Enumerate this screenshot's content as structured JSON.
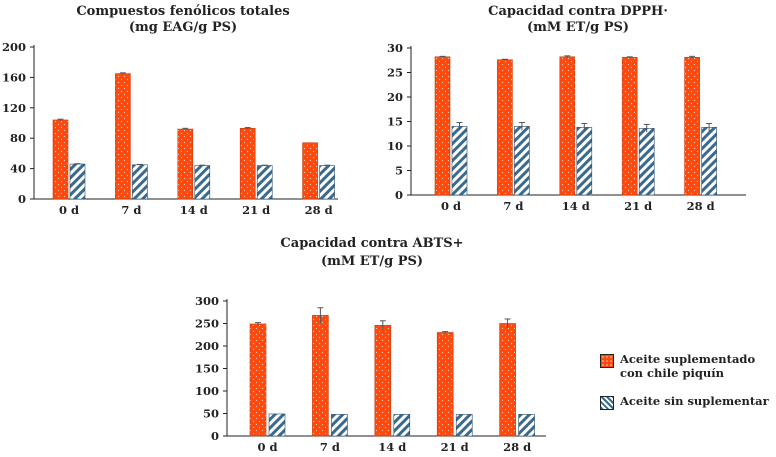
{
  "colors": {
    "supplemented": "#ff4a0f",
    "plain": "#3a6a8e",
    "axis": "#222222"
  },
  "legend": {
    "items": [
      {
        "label_lines": [
          "Aceite suplementado",
          "con chile piquín"
        ],
        "pattern": "dotted-orange"
      },
      {
        "label_lines": [
          "Aceite sin suplementar"
        ],
        "pattern": "diagonal-hatch-blue"
      }
    ]
  },
  "chart_data": [
    {
      "type": "bar",
      "title_lines": [
        "Compuestos fenólicos totales",
        "(mg EAG/g PS)"
      ],
      "categories": [
        "0 d",
        "7 d",
        "14 d",
        "21 d",
        "28 d"
      ],
      "ylim": [
        0,
        200
      ],
      "yticks": [
        0,
        40,
        80,
        120,
        160,
        200
      ],
      "series": [
        {
          "name": "Aceite suplementado con chile piquín",
          "values": [
            104,
            165,
            92,
            93,
            74
          ],
          "errors": [
            1,
            1,
            1,
            1,
            0
          ]
        },
        {
          "name": "Aceite sin suplementar",
          "values": [
            46,
            45,
            44,
            44,
            44
          ],
          "errors": [
            0.5,
            0.5,
            0.5,
            0.5,
            0.5
          ]
        }
      ],
      "grid": false,
      "legend": "bottom-right"
    },
    {
      "type": "bar",
      "title_lines": [
        "Capacidad contra DPPH·",
        "(mM ET/g PS)"
      ],
      "categories": [
        "0 d",
        "7 d",
        "14 d",
        "21 d",
        "28 d"
      ],
      "ylim": [
        0,
        30
      ],
      "yticks": [
        0,
        5,
        10,
        15,
        20,
        25,
        30
      ],
      "series": [
        {
          "name": "Aceite suplementado con chile piquín",
          "values": [
            28.2,
            27.6,
            28.2,
            28.1,
            28.1
          ],
          "errors": [
            0.1,
            0.1,
            0.2,
            0.1,
            0.2
          ]
        },
        {
          "name": "Aceite sin suplementar",
          "values": [
            14,
            14,
            13.8,
            13.6,
            13.8
          ],
          "errors": [
            0.8,
            0.8,
            0.8,
            0.8,
            0.8
          ]
        }
      ],
      "grid": false,
      "legend": "bottom-right"
    },
    {
      "type": "bar",
      "title_lines": [
        "Capacidad contra ABTS+",
        "(mM ET/g PS)"
      ],
      "categories": [
        "0 d",
        "7 d",
        "14 d",
        "21 d",
        "28 d"
      ],
      "ylim": [
        0,
        300
      ],
      "yticks": [
        0,
        50,
        100,
        150,
        200,
        250,
        300
      ],
      "series": [
        {
          "name": "Aceite suplementado con chile piquín",
          "values": [
            249,
            268,
            246,
            230,
            250
          ],
          "errors": [
            3,
            17,
            10,
            2,
            10
          ]
        },
        {
          "name": "Aceite sin suplementar",
          "values": [
            49,
            48,
            48,
            48,
            48
          ],
          "errors": [
            0,
            0,
            0,
            0,
            0
          ]
        }
      ],
      "grid": false,
      "legend": "bottom-right"
    }
  ]
}
